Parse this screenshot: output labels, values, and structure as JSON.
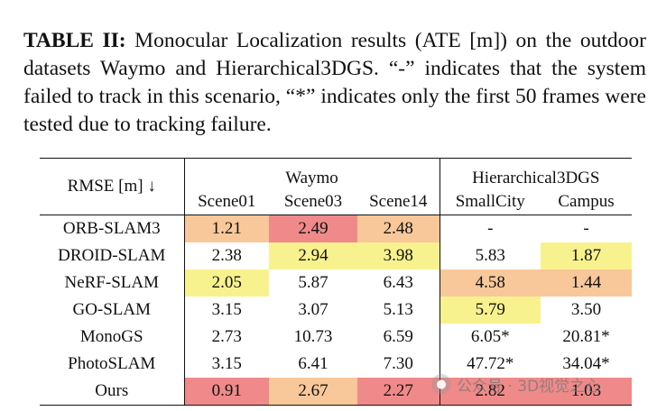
{
  "caption": {
    "label": "TABLE II:",
    "text": "Monocular Localization results (ATE [m]) on the outdoor datasets Waymo and Hierarchical3DGS. “-” indicates that the system failed to track in this scenario, “*” indicates only the first 50 frames were tested due to tracking failure."
  },
  "table": {
    "metric_header": "RMSE [m] ↓",
    "groups": [
      "Waymo",
      "Hierarchical3DGS"
    ],
    "columns": [
      "Scene01",
      "Scene03",
      "Scene14",
      "SmallCity",
      "Campus"
    ],
    "rows": [
      {
        "method": "ORB-SLAM3",
        "values": [
          "1.21",
          "2.49",
          "2.48",
          "-",
          "-"
        ]
      },
      {
        "method": "DROID-SLAM",
        "values": [
          "2.38",
          "2.94",
          "3.98",
          "5.83",
          "1.87"
        ]
      },
      {
        "method": "NeRF-SLAM",
        "values": [
          "2.05",
          "5.87",
          "6.43",
          "4.58",
          "1.44"
        ]
      },
      {
        "method": "GO-SLAM",
        "values": [
          "3.15",
          "3.07",
          "5.13",
          "5.79",
          "3.50"
        ]
      },
      {
        "method": "MonoGS",
        "values": [
          "2.73",
          "10.73",
          "6.59",
          "6.05*",
          "20.81*"
        ]
      },
      {
        "method": "PhotoSLAM",
        "values": [
          "3.15",
          "6.41",
          "7.30",
          "47.72*",
          "34.04*"
        ]
      },
      {
        "method": "Ours",
        "values": [
          "0.91",
          "2.67",
          "2.27",
          "2.82",
          "1.03"
        ]
      }
    ]
  },
  "highlight_colors": {
    "best": "#f08a8a",
    "second": "#f8c89a",
    "third": "#f8f28e"
  },
  "watermark": {
    "text": "公众号 · 3D视觉之心"
  }
}
